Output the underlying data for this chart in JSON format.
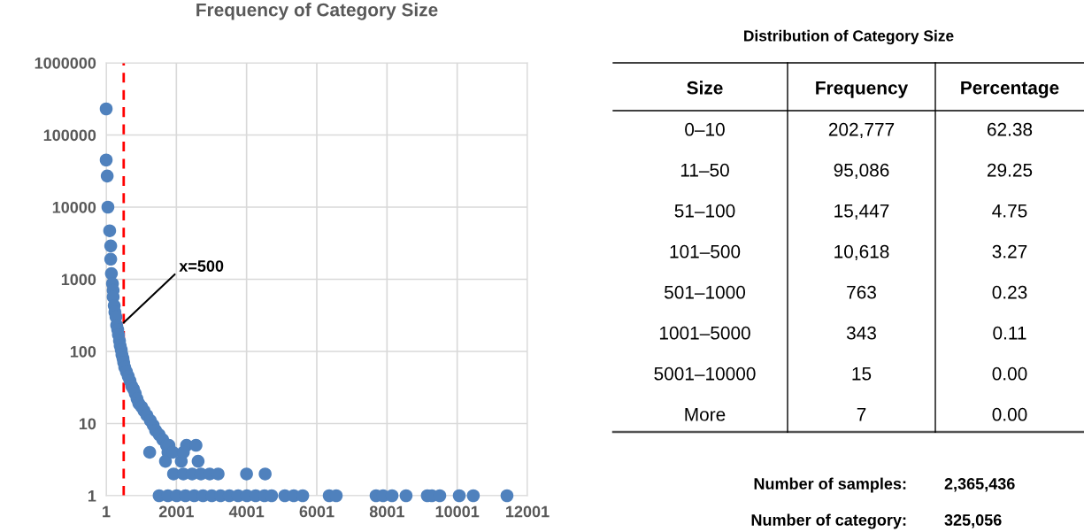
{
  "chart_data": [
    {
      "type": "scatter",
      "title": "Frequency of Category Size",
      "log": "y",
      "grid": true,
      "marker": "circle",
      "xlim": [
        1,
        12001
      ],
      "xticks": [
        1,
        2001,
        4001,
        6001,
        8001,
        10001,
        12001
      ],
      "ylim": [
        1,
        1000000
      ],
      "yticks": [
        1,
        10,
        100,
        1000,
        10000,
        100000,
        1000000
      ],
      "ref_lines": [
        {
          "axis": "x",
          "value": 500,
          "label": "x=500",
          "color": "#ff0000",
          "line_style": "dashed"
        }
      ],
      "series": [
        {
          "color": "#4f81bd",
          "x": [
            1,
            1,
            30,
            50,
            100,
            130,
            130,
            150,
            180,
            200,
            200,
            230,
            250,
            280,
            300,
            330,
            350,
            380,
            400,
            430,
            450,
            480,
            500,
            530,
            580,
            630,
            680,
            730,
            780,
            830,
            880,
            930,
            1010,
            1080,
            1160,
            1260,
            1340,
            1410,
            1510,
            1610,
            1720,
            1240,
            1760,
            1790,
            2290,
            1690,
            2140,
            2620,
            1900,
            2200,
            2560,
            1920,
            2200,
            2450,
            2700,
            2950,
            3190,
            4000,
            4530,
            1510,
            1760,
            2010,
            2260,
            2510,
            2760,
            3010,
            3260,
            3510,
            3760,
            4010,
            4260,
            4510,
            4715,
            5090,
            5345,
            5600,
            6355,
            6555,
            7690,
            7890,
            8145,
            8545,
            9150,
            9280,
            9505,
            10060,
            10460,
            11420
          ],
          "values": [
            230000,
            45000,
            27000,
            10000,
            4700,
            2900,
            1900,
            1200,
            870,
            700,
            570,
            430,
            350,
            300,
            230,
            200,
            170,
            140,
            120,
            105,
            90,
            80,
            70,
            60,
            52,
            45,
            39,
            33,
            30,
            26,
            22,
            19,
            17,
            15,
            13,
            11,
            9.5,
            8,
            7,
            6,
            5,
            4,
            4,
            5,
            5,
            3,
            3,
            3,
            4,
            4,
            5,
            2,
            2,
            2,
            2,
            2,
            2,
            2,
            2,
            1,
            1,
            1,
            1,
            1,
            1,
            1,
            1,
            1,
            1,
            1,
            1,
            1,
            1,
            1,
            1,
            1,
            1,
            1,
            1,
            1,
            1,
            1,
            1,
            1,
            1,
            1,
            1,
            1
          ]
        }
      ]
    },
    {
      "type": "other",
      "title": "Distribution of Category Size",
      "xlabel": "Size",
      "categories": [
        "0–10",
        "11–50",
        "51–100",
        "101–500",
        "501–1000",
        "1001–5000",
        "5001–10000",
        "More"
      ],
      "series": [
        {
          "name": "Frequency",
          "values": [
            202777,
            95086,
            15447,
            10618,
            763,
            343,
            15,
            7
          ],
          "value_labels": [
            "202,777",
            "95,086",
            "15,447",
            "10,618",
            "763",
            "343",
            "15",
            "7"
          ]
        },
        {
          "name": "Percentage",
          "values": [
            62.38,
            29.25,
            4.75,
            3.27,
            0.23,
            0.11,
            0.0,
            0.0
          ],
          "value_labels": [
            "62.38",
            "29.25",
            "4.75",
            "3.27",
            "0.23",
            "0.11",
            "0.00",
            "0.00"
          ]
        }
      ],
      "annotations": [
        "Number of samples:",
        "2,365,436",
        "Number of category:",
        "325,056"
      ]
    }
  ]
}
